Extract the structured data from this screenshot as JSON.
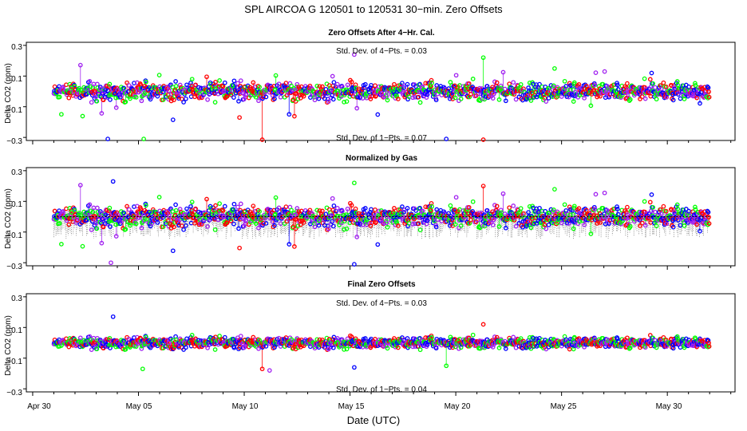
{
  "figure": {
    "title": "SPL   AIRCOA G   120501 to 120531   30−min. Zero Offsets",
    "xlabel": "Date (UTC)",
    "x_ticks": [
      "Apr 30",
      "May 05",
      "May 10",
      "May 15",
      "May 20",
      "May 25",
      "May 30"
    ]
  },
  "colors": {
    "series": [
      "#0000ff",
      "#00ff00",
      "#ff0000",
      "#a020f0"
    ],
    "offset_marks": "#000000"
  },
  "chart_data": [
    {
      "type": "scatter",
      "title": "Zero Offsets After 4−Hr. Cal.",
      "ylabel": "Delta CO2 (ppm)",
      "y_ticks": [
        "0.3",
        "0.1",
        "−0.1",
        "−0.3"
      ],
      "ylim": [
        -0.32,
        0.32
      ],
      "xlim": [
        -0.3,
        33.2
      ],
      "annotations": [
        "Std. Dev. of 4−Pts. =  0.03",
        "Std. Dev. of 1−Pts. =  0.07"
      ],
      "series_colors": [
        "blue",
        "green",
        "red",
        "purple"
      ],
      "x_range_days": [
        1.0,
        32.0
      ],
      "notable_points": [
        {
          "day": 3.55,
          "value": -0.31
        },
        {
          "day": 5.25,
          "value": -0.31
        },
        {
          "day": 10.85,
          "value": -0.32
        },
        {
          "day": 15.2,
          "value": 0.24
        },
        {
          "day": 19.55,
          "value": -0.31
        },
        {
          "day": 21.3,
          "value": 0.22
        },
        {
          "day": 21.3,
          "value": -0.32
        }
      ]
    },
    {
      "type": "scatter",
      "title": "Normalized by Gas",
      "ylabel": "Delta CO2 (ppm)",
      "y_ticks": [
        "0.3",
        "0.1",
        "−0.1",
        "−0.3"
      ],
      "ylim": [
        -0.32,
        0.32
      ],
      "xlim": [
        -0.3,
        33.2
      ],
      "series_colors": [
        "blue",
        "green",
        "red",
        "purple"
      ],
      "x_range_days": [
        1.0,
        32.0
      ],
      "offset_baseline": 0.0,
      "notable_points": [
        {
          "day": 3.8,
          "value": 0.23
        },
        {
          "day": 15.2,
          "value": 0.22
        },
        {
          "day": 21.3,
          "value": 0.2
        },
        {
          "day": 3.7,
          "value": -0.3
        },
        {
          "day": 15.2,
          "value": -0.31
        }
      ]
    },
    {
      "type": "scatter",
      "title": "Final Zero Offsets",
      "ylabel": "Delta CO2 (ppm)",
      "y_ticks": [
        "0.3",
        "0.1",
        "−0.1",
        "−0.3"
      ],
      "ylim": [
        -0.32,
        0.32
      ],
      "xlim": [
        -0.3,
        33.2
      ],
      "annotations": [
        "Std. Dev. of 4−Pts. =  0.03",
        "Std. Dev. of 1−Pts. =  0.04"
      ],
      "series_colors": [
        "blue",
        "green",
        "red",
        "purple"
      ],
      "x_range_days": [
        1.0,
        32.0
      ],
      "notable_points": [
        {
          "day": 3.8,
          "value": 0.17
        },
        {
          "day": 5.2,
          "value": -0.17
        },
        {
          "day": 10.85,
          "value": -0.17
        },
        {
          "day": 11.2,
          "value": -0.18
        },
        {
          "day": 15.2,
          "value": -0.16
        },
        {
          "day": 19.55,
          "value": -0.15
        },
        {
          "day": 21.3,
          "value": 0.12
        }
      ]
    }
  ]
}
